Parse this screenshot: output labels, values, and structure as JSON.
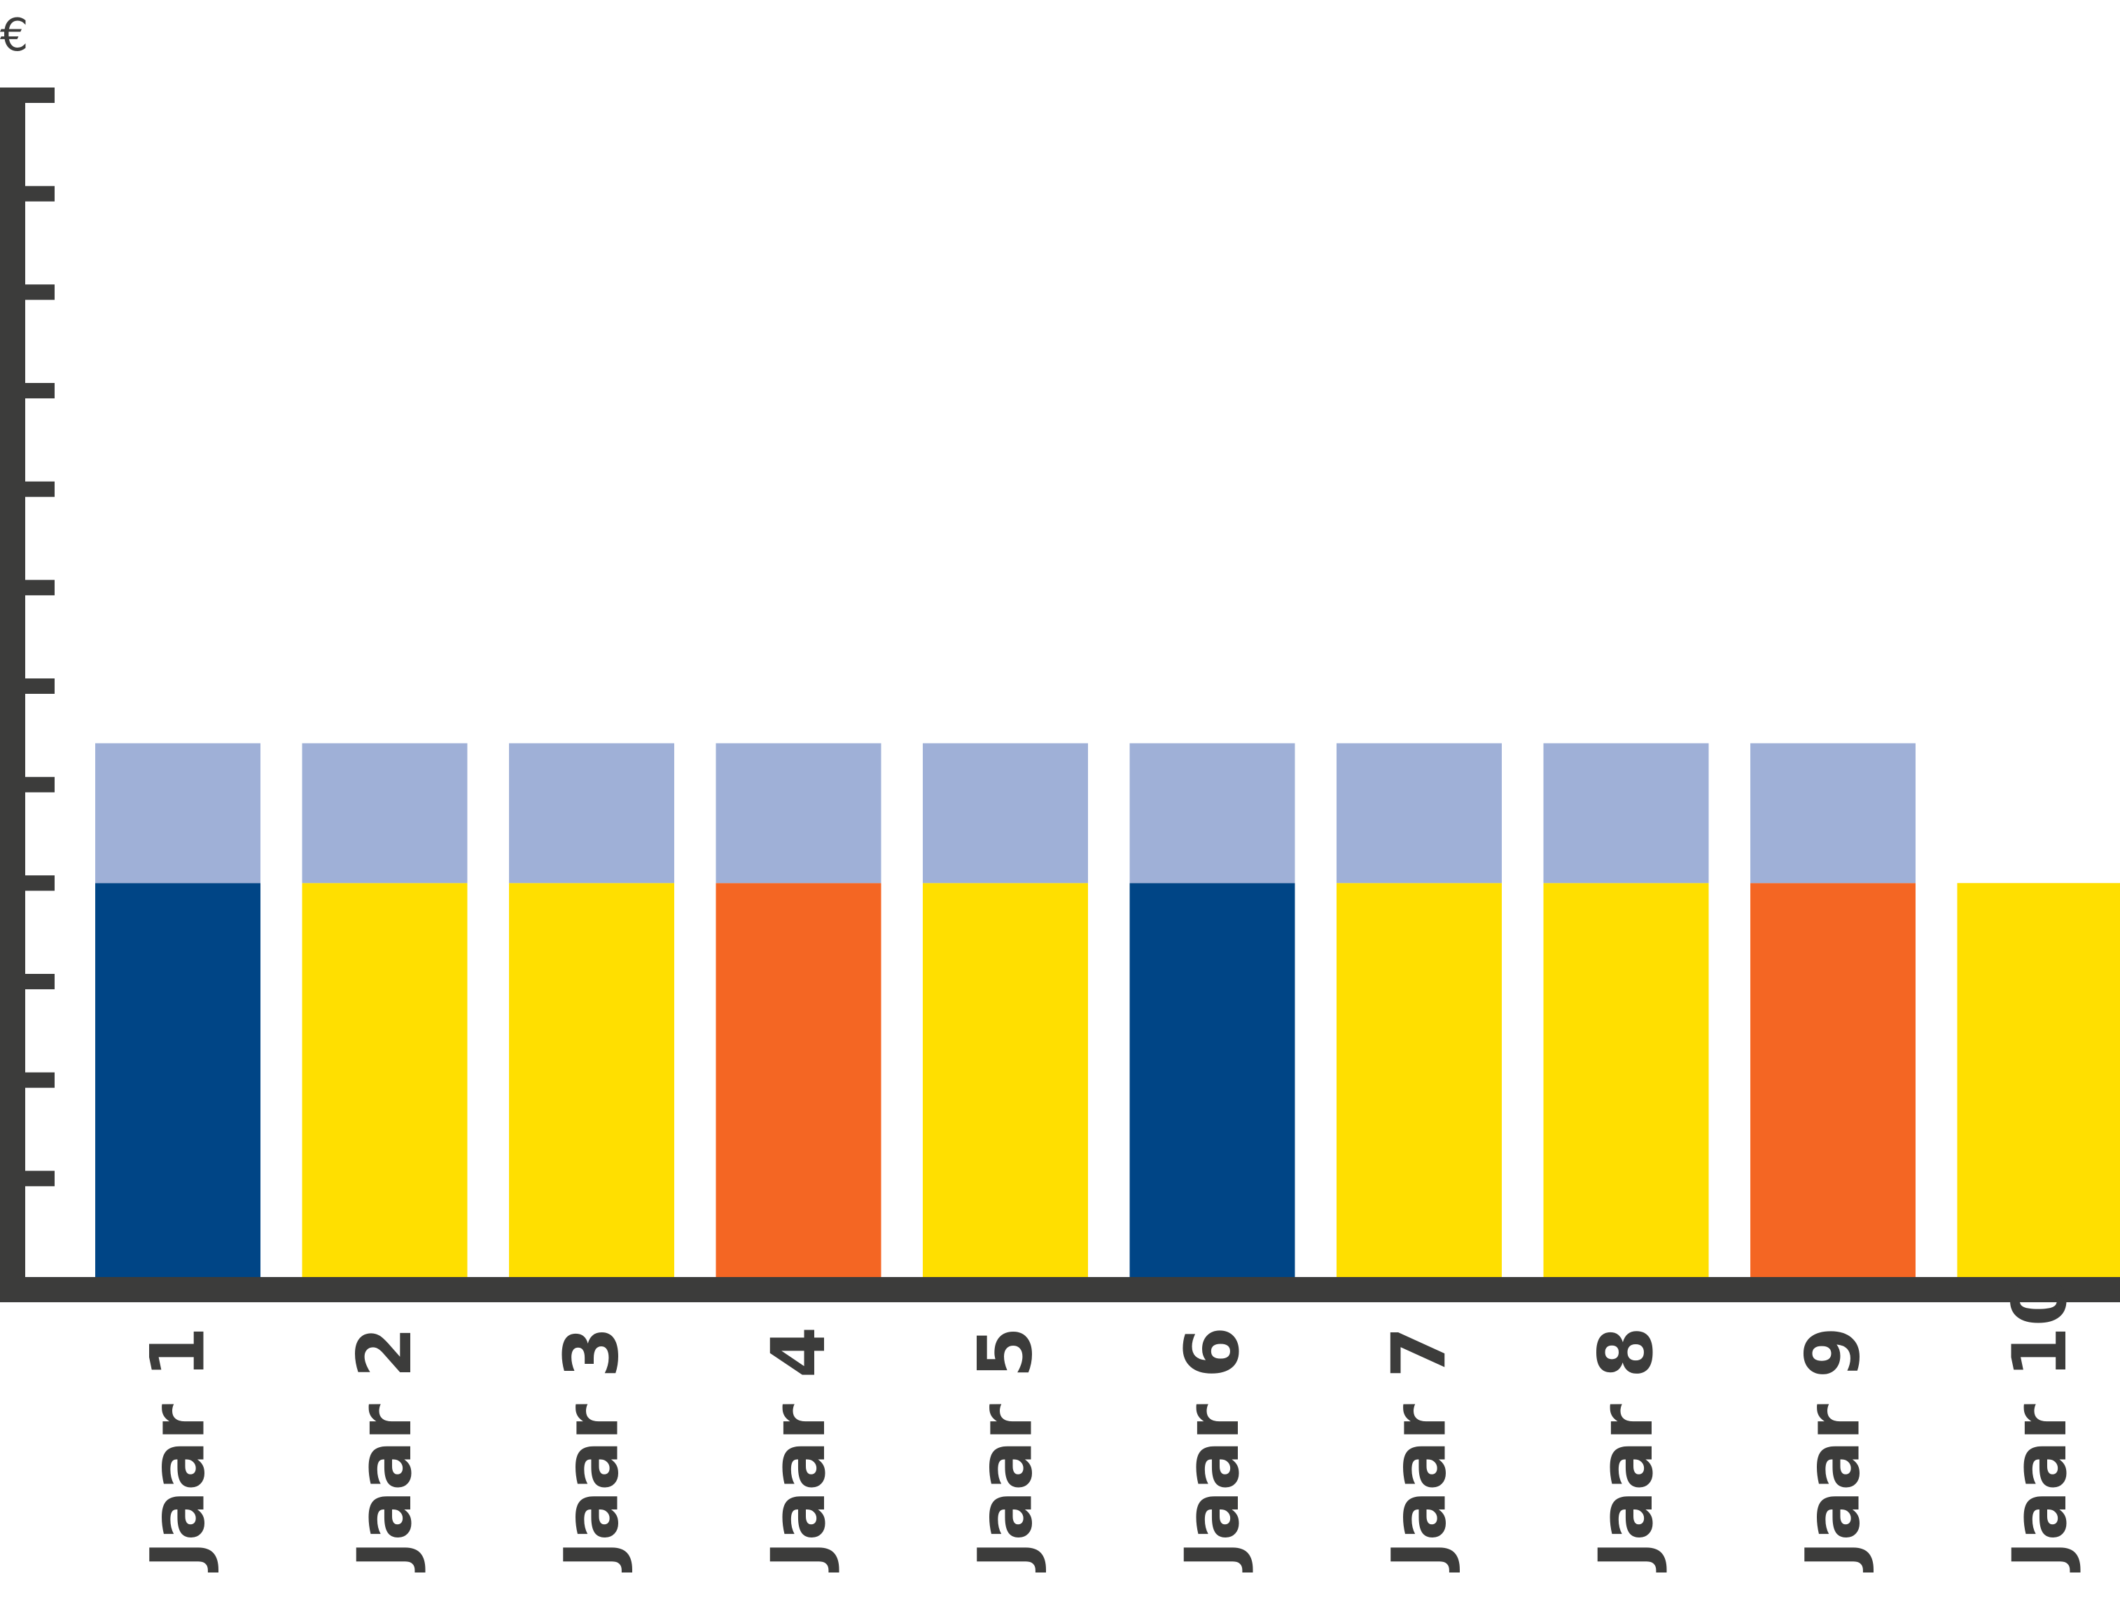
{
  "chart_data": {
    "type": "bar",
    "stacked": true,
    "ylabel": "€",
    "categories": [
      "Jaar 1",
      "Jaar 2",
      "Jaar 3",
      "Jaar 4",
      "Jaar 5",
      "Jaar 6",
      "Jaar 7",
      "Jaar 8",
      "Jaar 9",
      "Jaar 10"
    ],
    "ylim": [
      0,
      12
    ],
    "y_tick_count": 12,
    "grid": false,
    "legend": "none",
    "x_label_rotation": "vertical",
    "segments": [
      {
        "values": [
          4,
          4,
          4,
          4,
          4,
          4,
          4,
          4,
          4,
          4
        ],
        "colors": [
          "#004586",
          "#ffdf00",
          "#ffdf00",
          "#f46623",
          "#ffdf00",
          "#004586",
          "#ffdf00",
          "#ffdf00",
          "#f46623",
          "#ffdf00"
        ]
      },
      {
        "values": [
          1.42,
          1.42,
          1.42,
          1.42,
          1.42,
          1.42,
          1.42,
          1.42,
          1.42,
          0
        ],
        "colors": [
          "#9fb0d7",
          "#9fb0d7",
          "#9fb0d7",
          "#9fb0d7",
          "#9fb0d7",
          "#9fb0d7",
          "#9fb0d7",
          "#9fb0d7",
          "#9fb0d7",
          "#9fb0d7"
        ]
      }
    ],
    "axis_color": "#3c3c3b"
  }
}
